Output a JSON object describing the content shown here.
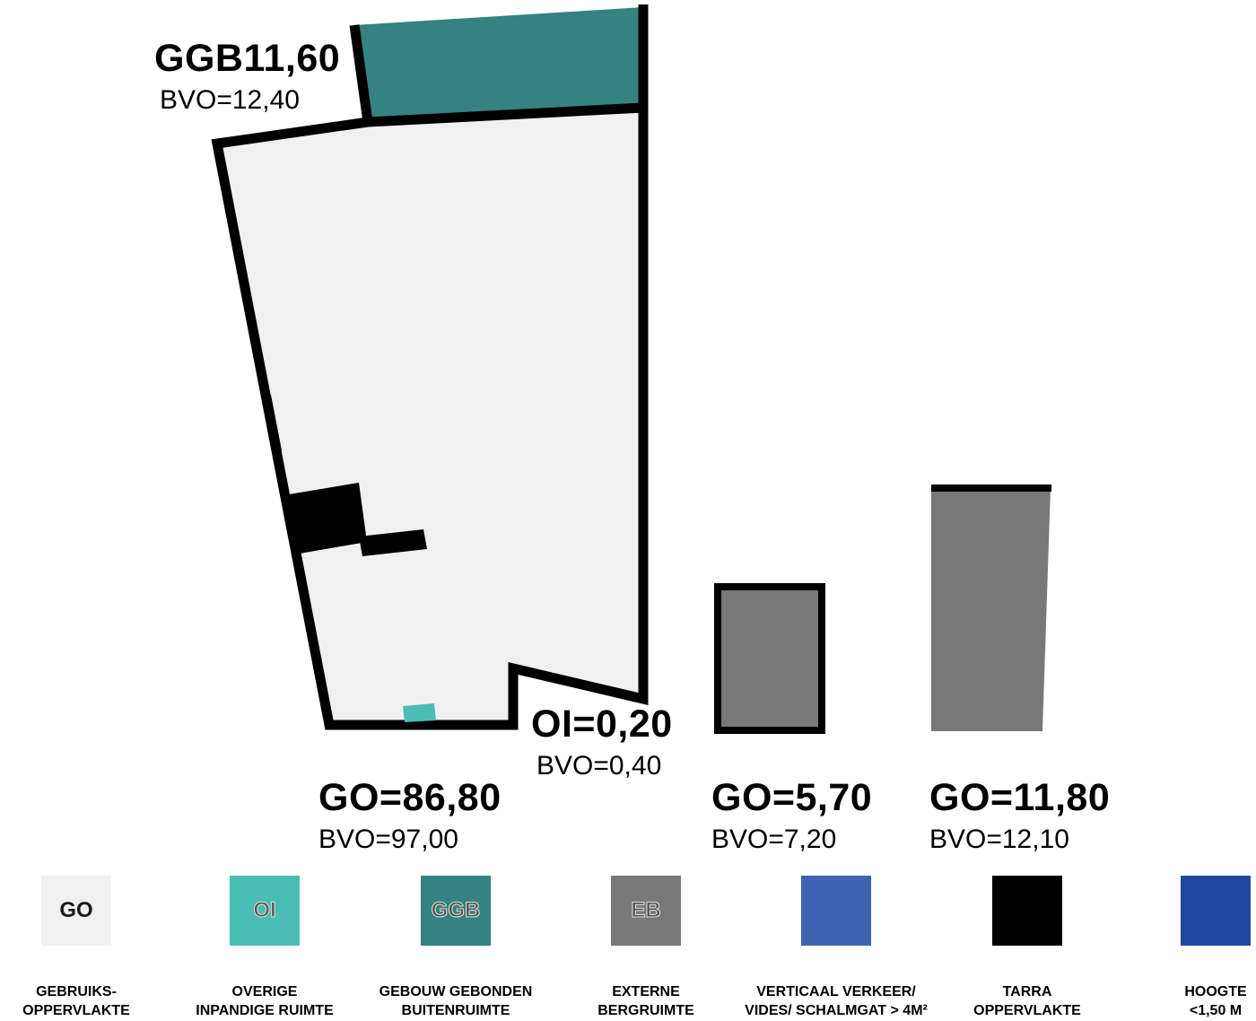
{
  "colors": {
    "go": "#f0f0f0",
    "oi": "#4abdb5",
    "ggb": "#358282",
    "eb": "#787878",
    "vv": "#4062b3",
    "tarra": "#000000",
    "hoogte": "#1d4aa0"
  },
  "areas": {
    "ggb": {
      "code": "GGB11,60",
      "bvo": "BVO=12,40"
    },
    "oi": {
      "code": "OI=0,20",
      "bvo": "BVO=0,40"
    },
    "go_main": {
      "code": "GO=86,80",
      "bvo": "BVO=97,00"
    },
    "go_storage_small": {
      "code": "GO=5,70",
      "bvo": "BVO=7,20"
    },
    "go_storage_large": {
      "code": "GO=11,80",
      "bvo": "BVO=12,10"
    }
  },
  "legend": [
    {
      "id": "go",
      "code": "GO",
      "label": "GEBRUIKS-\nOPPERVLAKTE",
      "color": "#f0f0f0"
    },
    {
      "id": "oi",
      "code": "OI",
      "label": "OVERIGE\nINPANDIGE RUIMTE",
      "color": "#4abdb5"
    },
    {
      "id": "ggb",
      "code": "GGB",
      "label": "GEBOUW GEBONDEN\nBUITENRUIMTE",
      "color": "#358282"
    },
    {
      "id": "eb",
      "code": "EB",
      "label": "EXTERNE\nBERGRUIMTE",
      "color": "#787878"
    },
    {
      "id": "vv",
      "code": "",
      "label": "VERTICAAL VERKEER/\nVIDES/ SCHALMGAT > 4M²",
      "color": "#4062b3"
    },
    {
      "id": "tarra",
      "code": "",
      "label": "TARRA\nOPPERVLAKTE",
      "color": "#000000"
    },
    {
      "id": "hoogte",
      "code": "",
      "label": "HOOGTE\n<1,50 M",
      "color": "#1d4aa0"
    }
  ]
}
